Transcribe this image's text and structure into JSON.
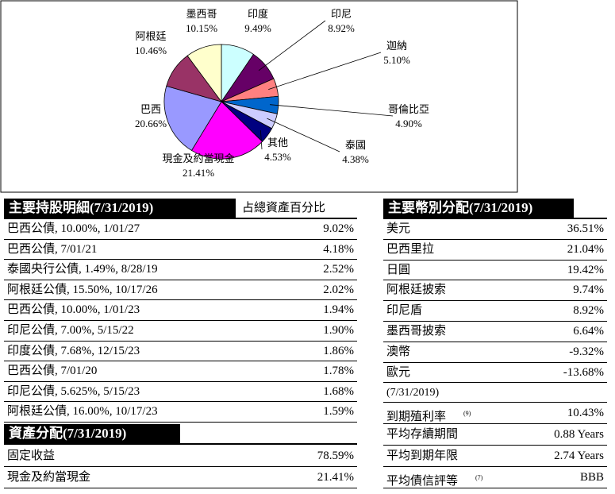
{
  "chart_data": {
    "type": "pie",
    "categories": [
      "印度",
      "印尼",
      "迦納",
      "哥倫比亞",
      "泰國",
      "其他",
      "現金及約當現金",
      "巴西",
      "阿根廷",
      "墨西哥"
    ],
    "values": [
      9.49,
      8.92,
      5.1,
      4.9,
      4.38,
      4.53,
      21.41,
      20.66,
      10.46,
      10.15
    ],
    "value_labels": [
      "9.49%",
      "8.92%",
      "5.10%",
      "4.90%",
      "4.38%",
      "4.53%",
      "21.41%",
      "20.66%",
      "10.46%",
      "10.15%"
    ],
    "colors": [
      "#ccffff",
      "#660066",
      "#ff8080",
      "#0066cc",
      "#ccccff",
      "#000080",
      "#ff00ff",
      "#9999ff",
      "#993366",
      "#ffffcc"
    ]
  },
  "holdings": {
    "title": "主要持股明細(7/31/2019)",
    "column": "占總資產百分比",
    "rows": [
      [
        "巴西公債, 10.00%, 1/01/27",
        "9.02%"
      ],
      [
        "巴西公債, 7/01/21",
        "4.18%"
      ],
      [
        "泰國央行公債, 1.49%, 8/28/19",
        "2.52%"
      ],
      [
        "阿根廷公債, 15.50%, 10/17/26",
        "2.02%"
      ],
      [
        "巴西公債, 10.00%, 1/01/23",
        "1.94%"
      ],
      [
        "印尼公債, 7.00%, 5/15/22",
        "1.90%"
      ],
      [
        "印度公債, 7.68%, 12/15/23",
        "1.86%"
      ],
      [
        "巴西公債, 7/01/20",
        "1.78%"
      ],
      [
        "印尼公債, 5.625%, 5/15/23",
        "1.68%"
      ],
      [
        "阿根廷公債, 16.00%, 10/17/23",
        "1.59%"
      ]
    ]
  },
  "allocation": {
    "title": "資產分配(7/31/2019)",
    "rows": [
      [
        "固定收益",
        "78.59%"
      ],
      [
        "現金及約當現金",
        "21.41%"
      ]
    ]
  },
  "currency": {
    "title": "主要幣別分配(7/31/2019)",
    "rows": [
      [
        "美元",
        "36.51%"
      ],
      [
        "巴西里拉",
        "21.04%"
      ],
      [
        "日圓",
        "19.42%"
      ],
      [
        "阿根廷披索",
        "9.74%"
      ],
      [
        "印尼盾",
        "8.92%"
      ],
      [
        "墨西哥披索",
        "6.64%"
      ],
      [
        "澳幣",
        "-9.32%"
      ],
      [
        "歐元",
        "-13.68%"
      ]
    ]
  },
  "stats": {
    "date": "(7/31/2019)",
    "rows": [
      [
        "到期殖利率",
        "(9)",
        "10.43%"
      ],
      [
        "平均存續期間",
        "",
        "0.88 Years"
      ],
      [
        "平均到期年限",
        "",
        "2.74 Years"
      ],
      [
        "平均債信評等",
        "(7)",
        "BBB"
      ]
    ]
  }
}
